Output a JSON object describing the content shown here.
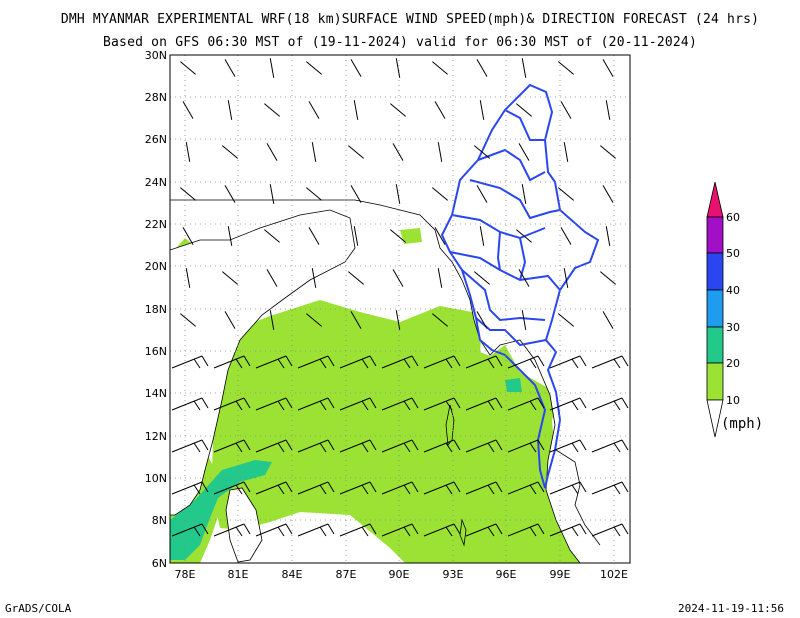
{
  "title_line1": "DMH MYANMAR EXPERIMENTAL WRF(18 km)SURFACE WIND SPEED(mph)& DIRECTION FORECAST (24 hrs)",
  "title_line2": "Based on GFS 06:30 MST of (19-11-2024) valid for 06:30 MST of (20-11-2024)",
  "footer_left": "GrADS/COLA",
  "footer_right": "2024-11-19-11:56",
  "map": {
    "lon_range": [
      77,
      103
    ],
    "lat_range": [
      6,
      30
    ],
    "lat_ticks": [
      "30N",
      "28N",
      "26N",
      "24N",
      "22N",
      "20N",
      "18N",
      "16N",
      "14N",
      "12N",
      "10N",
      "8N",
      "6N"
    ],
    "lon_ticks": [
      "78E",
      "81E",
      "84E",
      "87E",
      "90E",
      "93E",
      "96E",
      "99E",
      "102E"
    ],
    "grid": "dotted"
  },
  "colorbar": {
    "levels": [
      "10",
      "20",
      "30",
      "40",
      "50",
      "60"
    ],
    "colors": [
      "#9be234",
      "#23c98a",
      "#1e9df0",
      "#2b46f0",
      "#a10fc6",
      "#e8116f"
    ],
    "unit": "(mph)"
  }
}
